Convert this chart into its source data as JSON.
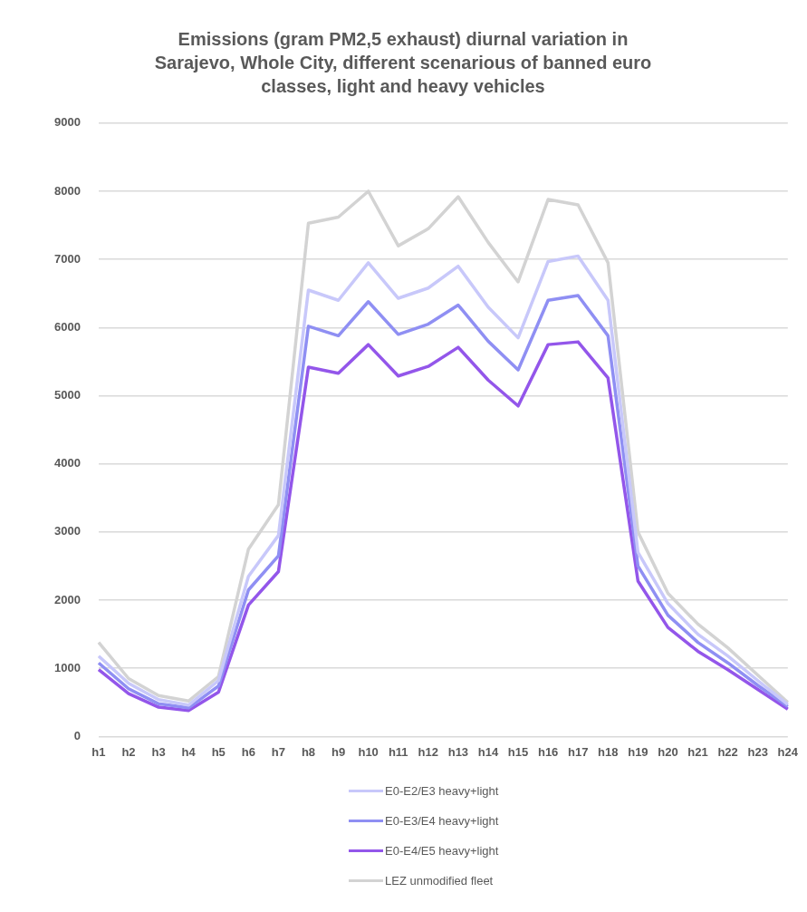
{
  "chart_data": {
    "type": "line",
    "title": "Emissions (gram PM2,5 exhaust) diurnal variation in Sarajevo, Whole City, different scenarious of banned euro classes, light and heavy vehicles",
    "categories": [
      "h1",
      "h2",
      "h3",
      "h4",
      "h5",
      "h6",
      "h7",
      "h8",
      "h9",
      "h10",
      "h11",
      "h12",
      "h13",
      "h14",
      "h15",
      "h16",
      "h17",
      "h18",
      "h19",
      "h20",
      "h21",
      "h22",
      "h23",
      "h24"
    ],
    "series": [
      {
        "name": "E0-E2/E3 heavy+light",
        "color": "#c8c8fa",
        "values": [
          1180,
          780,
          540,
          460,
          820,
          2350,
          2950,
          6550,
          6400,
          6950,
          6430,
          6580,
          6900,
          6300,
          5850,
          6970,
          7050,
          6400,
          2700,
          1950,
          1500,
          1180,
          820,
          470
        ]
      },
      {
        "name": "E0-E3/E4 heavy+light",
        "color": "#8f8ff3",
        "values": [
          1080,
          700,
          480,
          420,
          740,
          2150,
          2650,
          6020,
          5880,
          6380,
          5900,
          6050,
          6330,
          5800,
          5380,
          6400,
          6470,
          5880,
          2500,
          1780,
          1380,
          1080,
          750,
          440
        ]
      },
      {
        "name": "E0-E4/E5 heavy+light",
        "color": "#9356ea",
        "values": [
          980,
          630,
          430,
          380,
          650,
          1930,
          2420,
          5420,
          5330,
          5750,
          5290,
          5430,
          5710,
          5230,
          4850,
          5750,
          5790,
          5260,
          2280,
          1600,
          1250,
          980,
          690,
          400
        ]
      },
      {
        "name": "LEZ  unmodified fleet",
        "color": "#d3d3d3",
        "values": [
          1380,
          850,
          600,
          520,
          880,
          2750,
          3400,
          7530,
          7620,
          8000,
          7200,
          7450,
          7920,
          7250,
          6670,
          7880,
          7800,
          6950,
          3000,
          2100,
          1650,
          1300,
          900,
          500
        ]
      }
    ],
    "ylim": [
      0,
      9000
    ],
    "yticks": [
      0,
      1000,
      2000,
      3000,
      4000,
      5000,
      6000,
      7000,
      8000,
      9000
    ],
    "grid": "y",
    "legend": "bottom",
    "marker": "none",
    "line_style": "solid"
  }
}
